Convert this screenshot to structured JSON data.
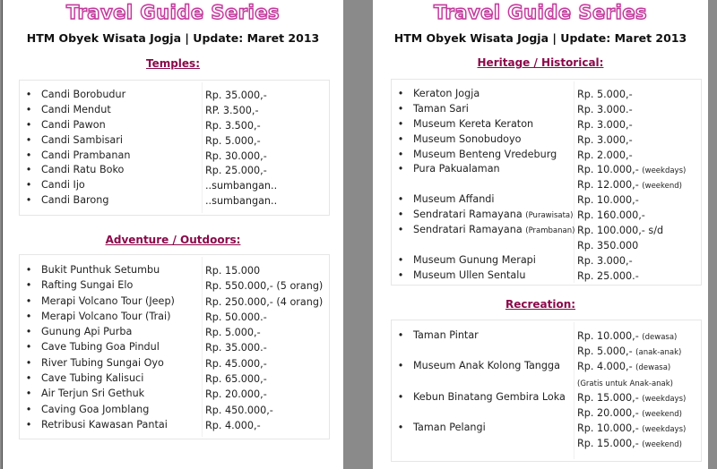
{
  "header": {
    "title": "Travel Guide Series",
    "subtitle": "HTM Obyek Wisata Jogja | Update: Maret 2013"
  },
  "colors": {
    "title": "#c0389a",
    "section": "#8a0a4a"
  },
  "left_page": {
    "sections": [
      {
        "heading": "Temples:",
        "items": [
          {
            "name": "Candi Borobudur",
            "price": [
              {
                "text": "Rp. 35.000,-"
              }
            ]
          },
          {
            "name": "Candi Mendut",
            "price": [
              {
                "text": "RP. 3.500,-"
              }
            ]
          },
          {
            "name": "Candi Pawon",
            "price": [
              {
                "text": "Rp. 3.500,-"
              }
            ]
          },
          {
            "name": "Candi Sambisari",
            "price": [
              {
                "text": "Rp. 5.000,-"
              }
            ]
          },
          {
            "name": "Candi Prambanan",
            "price": [
              {
                "text": "Rp. 30.000,-"
              }
            ]
          },
          {
            "name": "Candi Ratu Boko",
            "price": [
              {
                "text": "Rp. 25.000,-"
              }
            ]
          },
          {
            "name": "Candi Ijo",
            "price": [
              {
                "text": "..sumbangan.."
              }
            ]
          },
          {
            "name": "Candi Barong",
            "price": [
              {
                "text": "..sumbangan.."
              }
            ]
          }
        ]
      },
      {
        "heading": "Adventure / Outdoors:",
        "items": [
          {
            "name": "Bukit Punthuk Setumbu",
            "price": [
              {
                "text": "Rp. 15.000"
              }
            ]
          },
          {
            "name": "Rafting Sungai Elo",
            "price": [
              {
                "text": "Rp. 550.000,- (5 orang)"
              }
            ]
          },
          {
            "name": "Merapi Volcano Tour (Jeep)",
            "price": [
              {
                "text": "Rp. 250.000,- (4 orang)"
              }
            ]
          },
          {
            "name": "Merapi Volcano Tour (Trai)",
            "price": [
              {
                "text": "Rp. 50.000.-"
              }
            ]
          },
          {
            "name": "Gunung Api Purba",
            "price": [
              {
                "text": "Rp. 5.000,-"
              }
            ]
          },
          {
            "name": "Cave Tubing Goa Pindul",
            "price": [
              {
                "text": "Rp. 35.000.-"
              }
            ]
          },
          {
            "name": "River Tubing Sungai Oyo",
            "price": [
              {
                "text": "Rp. 45.000,-"
              }
            ]
          },
          {
            "name": "Cave Tubing Kalisuci",
            "price": [
              {
                "text": "Rp. 65.000,-"
              }
            ]
          },
          {
            "name": "Air Terjun Sri Gethuk",
            "price": [
              {
                "text": "Rp. 20.000,-"
              }
            ]
          },
          {
            "name": "Caving Goa Jomblang",
            "price": [
              {
                "text": "Rp. 450.000,-"
              }
            ]
          },
          {
            "name": "Retribusi Kawasan Pantai",
            "price": [
              {
                "text": "Rp. 4.000,-"
              }
            ]
          }
        ]
      }
    ]
  },
  "right_page": {
    "sections": [
      {
        "heading": "Heritage / Historical:",
        "items": [
          {
            "name": "Keraton Jogja",
            "price": [
              {
                "text": "Rp. 5.000,-"
              }
            ]
          },
          {
            "name": "Taman Sari",
            "price": [
              {
                "text": "Rp. 3.000.-"
              }
            ]
          },
          {
            "name": "Museum Kereta Keraton",
            "price": [
              {
                "text": "Rp. 3.000,-"
              }
            ]
          },
          {
            "name": "Museum Sonobudoyo",
            "price": [
              {
                "text": "Rp. 3.000,-"
              }
            ]
          },
          {
            "name": "Museum Benteng Vredeburg",
            "price": [
              {
                "text": "Rp. 2.000,-"
              }
            ]
          },
          {
            "name": "Pura Pakualaman",
            "price": [
              {
                "text": "Rp. 10.000,-",
                "note": "(weekdays)"
              },
              {
                "text": "Rp. 12.000,-",
                "note": "(weekend)"
              }
            ]
          },
          {
            "name": "Museum Affandi",
            "price": [
              {
                "text": "Rp. 10.000,-"
              }
            ]
          },
          {
            "name": "Sendratari Ramayana",
            "note": "(Purawisata)",
            "price": [
              {
                "text": "Rp. 160.000,-"
              }
            ]
          },
          {
            "name": "Sendratari Ramayana",
            "note": "(Prambanan)",
            "price": [
              {
                "text": "Rp. 100.000,- s/d"
              },
              {
                "text": "Rp. 350.000"
              }
            ]
          },
          {
            "name": "Museum Gunung Merapi",
            "price": [
              {
                "text": "Rp. 3.000,-"
              }
            ]
          },
          {
            "name": "Museum Ullen Sentalu",
            "price": [
              {
                "text": "Rp. 25.000.-"
              }
            ]
          }
        ]
      },
      {
        "heading": "Recreation:",
        "items": [
          {
            "name": "Taman Pintar",
            "price": [
              {
                "text": "Rp. 10.000,-",
                "note": "(dewasa)"
              },
              {
                "text": "Rp. 5.000,-",
                "note": "(anak-anak)"
              }
            ]
          },
          {
            "name": "Museum Anak Kolong Tangga",
            "price": [
              {
                "text": "Rp. 4.000,-",
                "note": "(dewasa)"
              },
              {
                "text": "",
                "note": "(Gratis untuk Anak-anak)"
              }
            ]
          },
          {
            "name": "Kebun Binatang Gembira Loka",
            "price": [
              {
                "text": "Rp. 15.000,-",
                "note": "(weekdays)"
              },
              {
                "text": "Rp. 20.000,-",
                "note": "(weekend)"
              }
            ]
          },
          {
            "name": "Taman Pelangi",
            "price": [
              {
                "text": "Rp. 10.000,-",
                "note": "(weekdays)"
              },
              {
                "text": "Rp. 15.000,-",
                "note": "(weekend)"
              }
            ]
          }
        ]
      }
    ]
  }
}
